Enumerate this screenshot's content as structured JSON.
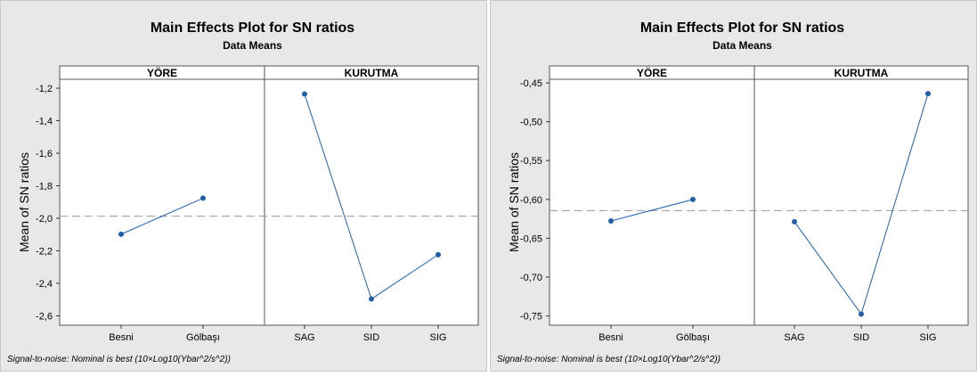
{
  "chart_data": [
    {
      "type": "line",
      "title": "Main Effects Plot for SN ratios",
      "subtitle": "Data Means",
      "ylabel": "Mean of SN ratios",
      "footnote": "Signal-to-noise: Nominal is best (10×Log10(Ybar^2/s^2))",
      "ylim": [
        -2.62,
        -1.12
      ],
      "yticks": [
        "-1,2",
        "-1,4",
        "-1,6",
        "-1,8",
        "-2,0",
        "-2,2",
        "-2,4",
        "-2,6"
      ],
      "reference_line": -1.955,
      "grid": false,
      "panels": [
        {
          "name": "YÖRE",
          "categories": [
            "Besni",
            "Gölbaşı"
          ],
          "values": [
            -2.065,
            -1.845
          ]
        },
        {
          "name": "KURUTMA",
          "categories": [
            "SAG",
            "SID",
            "SIG"
          ],
          "values": [
            -1.21,
            -2.46,
            -2.19
          ]
        }
      ],
      "colors": {
        "line": "#1f5fa8",
        "reference": "#999999",
        "background": "#e8e8e8"
      }
    },
    {
      "type": "line",
      "title": "Main Effects Plot for SN ratios",
      "subtitle": "Data Means",
      "ylabel": "Mean of SN ratios",
      "footnote": "Signal-to-noise: Nominal is best (10×Log10(Ybar^2/s^2))",
      "ylim": [
        -0.752,
        -0.443
      ],
      "yticks": [
        "-0,45",
        "-0,50",
        "-0,55",
        "-0,60",
        "-0,65",
        "-0,70",
        "-0,75"
      ],
      "reference_line": -0.608,
      "grid": false,
      "panels": [
        {
          "name": "YÖRE",
          "categories": [
            "Besni",
            "Gölbaşı"
          ],
          "values": [
            -0.621,
            -0.594
          ]
        },
        {
          "name": "KURUTMA",
          "categories": [
            "SAG",
            "SID",
            "SIG"
          ],
          "values": [
            -0.622,
            -0.738,
            -0.461
          ]
        }
      ],
      "colors": {
        "line": "#1f5fa8",
        "reference": "#999999",
        "background": "#e8e8e8"
      }
    }
  ]
}
